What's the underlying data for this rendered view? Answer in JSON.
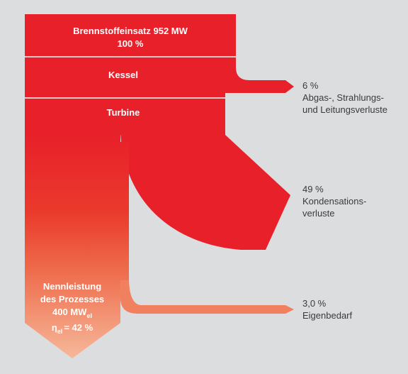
{
  "nodes": [
    {
      "label": "Brennstoffeinsatz 952 MW",
      "sublabel": "100 %"
    },
    {
      "label": "Kessel"
    },
    {
      "label": "Turbine"
    },
    {
      "lines": [
        "Nennleistung",
        "des Prozesses"
      ],
      "power": "400 MW",
      "power_sub": "el",
      "eta": "η",
      "eta_sub": "el",
      "eta_value": "= 42 %"
    }
  ],
  "losses": [
    {
      "percent": "6 %",
      "lines": [
        "Abgas-, Strahlungs-",
        "und Leitungsverluste"
      ]
    },
    {
      "percent": "49 %",
      "lines": [
        "Kondensations-",
        "verluste"
      ]
    },
    {
      "percent": "3,0 %",
      "lines": [
        "Eigenbedarf"
      ]
    }
  ]
}
